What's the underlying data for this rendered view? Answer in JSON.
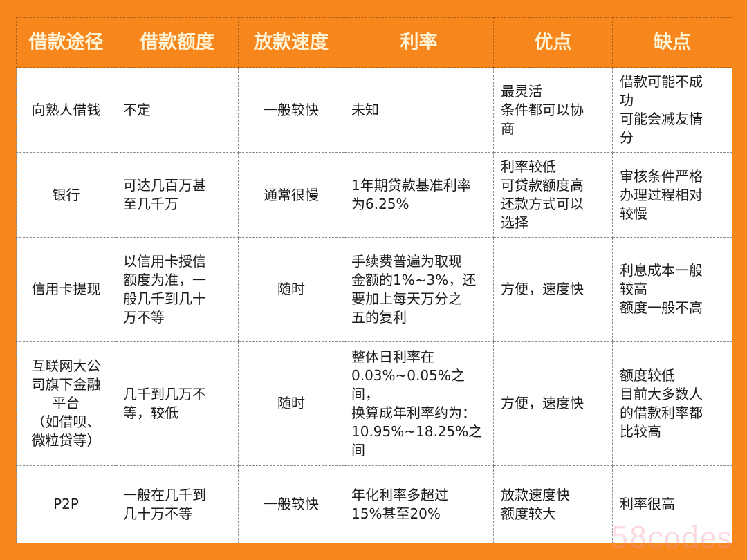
{
  "headers": [
    "借款途径",
    "借款额度",
    "放款速度",
    "利率",
    "优点",
    "缺点"
  ],
  "rows": [
    [
      "向熟人借钱",
      "不定",
      "一般较快",
      "未知",
      "最灵活\n条件都可以协\n商",
      "借款可能不成\n功\n可能会减友情\n分"
    ],
    [
      "银行",
      "可达几百万甚\n至几千万",
      "通常很慢",
      "1年期贷款基准利率\n为6.25%",
      "利率较低\n可贷款额度高\n还款方式可以\n选择",
      "审核条件严格\n办理过程相对\n较慢"
    ],
    [
      "信用卡提现",
      "以信用卡授信\n额度为准，一\n般几千到几十\n万不等",
      "随时",
      "手续费普遍为取现\n金额的1%~3%，还\n要加上每天万分之\n五的复利",
      "方便，速度快",
      "利息成本一般\n较高\n额度一般不高"
    ],
    [
      "互联网大公\n司旗下金融\n平台\n（如借呗、\n微粒贷等）",
      "几千到几万不\n等，较低",
      "随时",
      "整体日利率在\n0.03%~0.05%之间，\n换算成年利率约为：\n10.95%~18.25%之\n间",
      "方便，速度快",
      "额度较低\n目前大多数人\n的借款利率都\n比较高"
    ],
    [
      "P2P",
      "一般在几千到\n几十万不等",
      "一般较快",
      "年化利率多超过\n15%甚至20%",
      "放款速度快\n额度较大",
      "利率很高"
    ]
  ],
  "watermark": "58codes",
  "colors": {
    "background": "#f7861c",
    "header_text": "#fff3d6",
    "cell_bg": "#ffffff"
  }
}
